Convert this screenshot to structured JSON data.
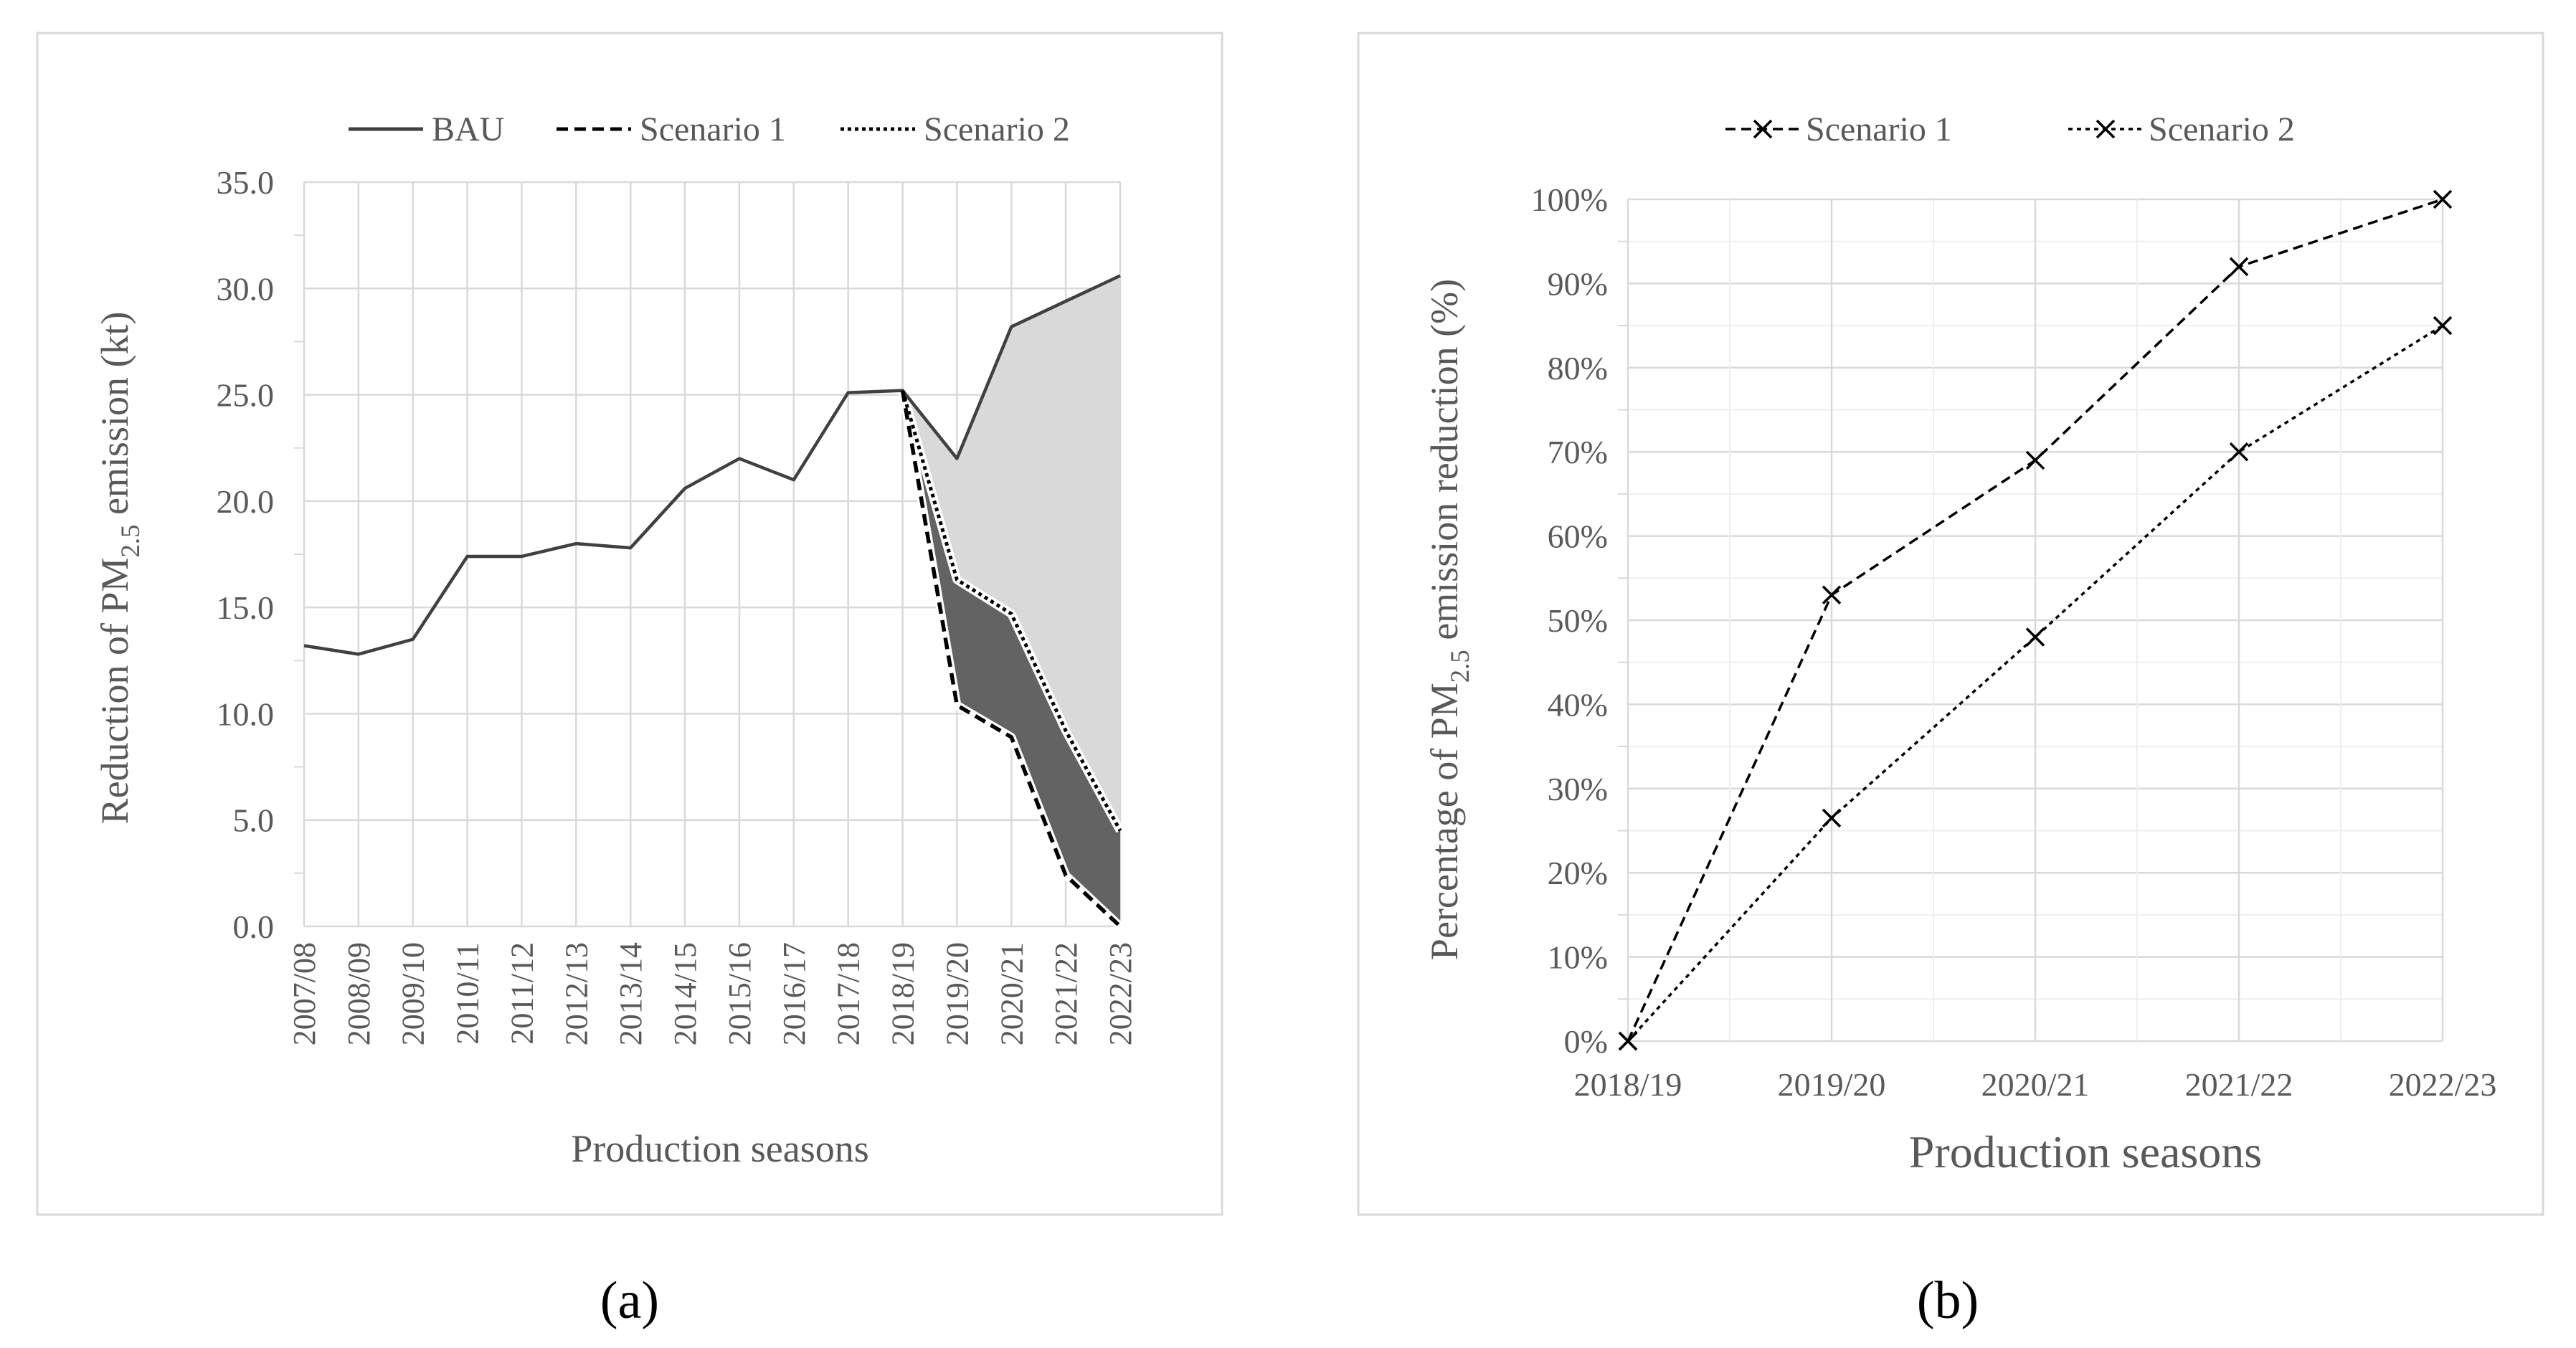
{
  "panel_labels": [
    "(a)",
    "(b)"
  ],
  "chart_data": [
    {
      "type": "line",
      "title": "",
      "xlabel": "Production seasons",
      "ylabel": "Reduction of PM2.5 emission (kt)",
      "ylabel_parts": [
        "Reduction of PM",
        "2.5",
        " emission (kt)"
      ],
      "ylim": [
        0,
        35
      ],
      "y_ticks": [
        0,
        5,
        10,
        15,
        20,
        25,
        30,
        35
      ],
      "y_tick_labels": [
        "0.0",
        "5.0",
        "10.0",
        "15.0",
        "20.0",
        "25.0",
        "30.0",
        "35.0"
      ],
      "categories": [
        "2007/08",
        "2008/09",
        "2009/10",
        "2010/11",
        "2011/12",
        "2012/13",
        "2013/14",
        "2014/15",
        "2015/16",
        "2016/17",
        "2017/18",
        "2018/19",
        "2019/20",
        "2020/21",
        "2021/22",
        "2022/23"
      ],
      "legend_position": "top",
      "grid": true,
      "series": [
        {
          "name": "BAU",
          "style": "solid",
          "values": [
            13.2,
            12.8,
            13.5,
            17.4,
            17.4,
            18.0,
            17.8,
            20.6,
            22.0,
            21.0,
            25.1,
            25.2,
            22.0,
            28.2,
            29.4,
            30.6
          ]
        },
        {
          "name": "Scenario 1",
          "style": "dashed",
          "values": [
            null,
            null,
            null,
            null,
            null,
            null,
            null,
            null,
            null,
            null,
            null,
            25.2,
            10.4,
            8.9,
            2.4,
            0.0
          ]
        },
        {
          "name": "Scenario 2",
          "style": "dotted",
          "values": [
            null,
            null,
            null,
            null,
            null,
            null,
            null,
            null,
            null,
            null,
            null,
            25.2,
            16.3,
            14.7,
            9.2,
            4.5
          ]
        }
      ],
      "shaded_areas": [
        {
          "between": [
            "BAU",
            "Scenario 2"
          ],
          "color": "#d9d9d9"
        },
        {
          "between": [
            "Scenario 2",
            "Scenario 1"
          ],
          "color": "#636363"
        }
      ]
    },
    {
      "type": "line",
      "title": "",
      "xlabel": "Production seasons",
      "ylabel": "Percentage of PM2.5 emission reduction (%)",
      "ylabel_parts": [
        "Percentage of PM",
        "2.5",
        " emission reduction (%)"
      ],
      "ylim": [
        0,
        100
      ],
      "y_ticks": [
        0,
        10,
        20,
        30,
        40,
        50,
        60,
        70,
        80,
        90,
        100
      ],
      "y_tick_labels": [
        "0%",
        "10%",
        "20%",
        "30%",
        "40%",
        "50%",
        "60%",
        "70%",
        "80%",
        "90%",
        "100%"
      ],
      "categories": [
        "2018/19",
        "2019/20",
        "2020/21",
        "2021/22",
        "2022/23"
      ],
      "legend_position": "top",
      "grid": true,
      "series": [
        {
          "name": "Scenario 1",
          "style": "dashed",
          "marker": "x",
          "values": [
            0,
            53,
            69,
            92,
            100
          ]
        },
        {
          "name": "Scenario 2",
          "style": "dotted",
          "marker": "x",
          "values": [
            0,
            26.5,
            48,
            70,
            85
          ]
        }
      ]
    }
  ]
}
